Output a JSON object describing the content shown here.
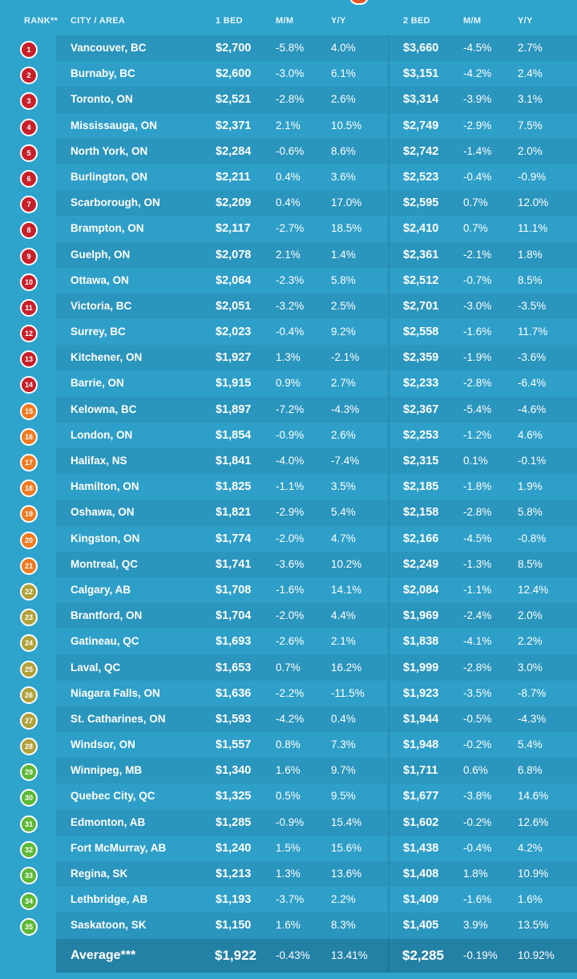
{
  "colors": {
    "background": "#2ea3cc",
    "rank_red": "#c8202a",
    "rank_orange": "#ee7b22",
    "rank_olive": "#b0a13a",
    "rank_green": "#5db836",
    "average_bar": "#2381a6"
  },
  "header": {
    "rank": "RANK**",
    "city": "CITY / AREA",
    "bed1": "1 BED",
    "mm1": "M/M",
    "yy1": "Y/Y",
    "bed2": "2 BED",
    "mm2": "M/M",
    "yy2": "Y/Y"
  },
  "rows": [
    {
      "rank": "1",
      "city": "Vancouver, BC",
      "b1": "$2,700",
      "m1": "-5.8%",
      "y1": "4.0%",
      "b2": "$3,660",
      "m2": "-4.5%",
      "y2": "2.7%",
      "tier": "red"
    },
    {
      "rank": "2",
      "city": "Burnaby, BC",
      "b1": "$2,600",
      "m1": "-3.0%",
      "y1": "6.1%",
      "b2": "$3,151",
      "m2": "-4.2%",
      "y2": "2.4%",
      "tier": "red"
    },
    {
      "rank": "3",
      "city": "Toronto, ON",
      "b1": "$2,521",
      "m1": "-2.8%",
      "y1": "2.6%",
      "b2": "$3,314",
      "m2": "-3.9%",
      "y2": "3.1%",
      "tier": "red"
    },
    {
      "rank": "4",
      "city": "Mississauga, ON",
      "b1": "$2,371",
      "m1": "2.1%",
      "y1": "10.5%",
      "b2": "$2,749",
      "m2": "-2.9%",
      "y2": "7.5%",
      "tier": "red"
    },
    {
      "rank": "5",
      "city": "North York, ON",
      "b1": "$2,284",
      "m1": "-0.6%",
      "y1": "8.6%",
      "b2": "$2,742",
      "m2": "-1.4%",
      "y2": "2.0%",
      "tier": "red"
    },
    {
      "rank": "6",
      "city": "Burlington, ON",
      "b1": "$2,211",
      "m1": "0.4%",
      "y1": "3.6%",
      "b2": "$2,523",
      "m2": "-0.4%",
      "y2": "-0.9%",
      "tier": "red"
    },
    {
      "rank": "7",
      "city": "Scarborough, ON",
      "b1": "$2,209",
      "m1": "0.4%",
      "y1": "17.0%",
      "b2": "$2,595",
      "m2": "0.7%",
      "y2": "12.0%",
      "tier": "red"
    },
    {
      "rank": "8",
      "city": "Brampton, ON",
      "b1": "$2,117",
      "m1": "-2.7%",
      "y1": "18.5%",
      "b2": "$2,410",
      "m2": "0.7%",
      "y2": "11.1%",
      "tier": "red"
    },
    {
      "rank": "9",
      "city": "Guelph, ON",
      "b1": "$2,078",
      "m1": "2.1%",
      "y1": "1.4%",
      "b2": "$2,361",
      "m2": "-2.1%",
      "y2": "1.8%",
      "tier": "red"
    },
    {
      "rank": "10",
      "city": "Ottawa, ON",
      "b1": "$2,064",
      "m1": "-2.3%",
      "y1": "5.8%",
      "b2": "$2,512",
      "m2": "-0.7%",
      "y2": "8.5%",
      "tier": "red"
    },
    {
      "rank": "11",
      "city": "Victoria, BC",
      "b1": "$2,051",
      "m1": "-3.2%",
      "y1": "2.5%",
      "b2": "$2,701",
      "m2": "-3.0%",
      "y2": "-3.5%",
      "tier": "red"
    },
    {
      "rank": "12",
      "city": "Surrey, BC",
      "b1": "$2,023",
      "m1": "-0.4%",
      "y1": "9.2%",
      "b2": "$2,558",
      "m2": "-1.6%",
      "y2": "11.7%",
      "tier": "red"
    },
    {
      "rank": "13",
      "city": "Kitchener, ON",
      "b1": "$1,927",
      "m1": "1.3%",
      "y1": "-2.1%",
      "b2": "$2,359",
      "m2": "-1.9%",
      "y2": "-3.6%",
      "tier": "red"
    },
    {
      "rank": "14",
      "city": "Barrie, ON",
      "b1": "$1,915",
      "m1": "0.9%",
      "y1": "2.7%",
      "b2": "$2,233",
      "m2": "-2.8%",
      "y2": "-6.4%",
      "tier": "red"
    },
    {
      "rank": "15",
      "city": "Kelowna, BC",
      "b1": "$1,897",
      "m1": "-7.2%",
      "y1": "-4.3%",
      "b2": "$2,367",
      "m2": "-5.4%",
      "y2": "-4.6%",
      "tier": "orange"
    },
    {
      "rank": "16",
      "city": "London, ON",
      "b1": "$1,854",
      "m1": "-0.9%",
      "y1": "2.6%",
      "b2": "$2,253",
      "m2": "-1.2%",
      "y2": "4.6%",
      "tier": "orange"
    },
    {
      "rank": "17",
      "city": "Halifax, NS",
      "b1": "$1,841",
      "m1": "-4.0%",
      "y1": "-7.4%",
      "b2": "$2,315",
      "m2": "0.1%",
      "y2": "-0.1%",
      "tier": "orange"
    },
    {
      "rank": "18",
      "city": "Hamilton, ON",
      "b1": "$1,825",
      "m1": "-1.1%",
      "y1": "3.5%",
      "b2": "$2,185",
      "m2": "-1.8%",
      "y2": "1.9%",
      "tier": "orange"
    },
    {
      "rank": "19",
      "city": "Oshawa, ON",
      "b1": "$1,821",
      "m1": "-2.9%",
      "y1": "5.4%",
      "b2": "$2,158",
      "m2": "-2.8%",
      "y2": "5.8%",
      "tier": "orange"
    },
    {
      "rank": "20",
      "city": "Kingston, ON",
      "b1": "$1,774",
      "m1": "-2.0%",
      "y1": "4.7%",
      "b2": "$2,166",
      "m2": "-4.5%",
      "y2": "-0.8%",
      "tier": "orange"
    },
    {
      "rank": "21",
      "city": "Montreal, QC",
      "b1": "$1,741",
      "m1": "-3.6%",
      "y1": "10.2%",
      "b2": "$2,249",
      "m2": "-1.3%",
      "y2": "8.5%",
      "tier": "orange"
    },
    {
      "rank": "22",
      "city": "Calgary, AB",
      "b1": "$1,708",
      "m1": "-1.6%",
      "y1": "14.1%",
      "b2": "$2,084",
      "m2": "-1.1%",
      "y2": "12.4%",
      "tier": "olive"
    },
    {
      "rank": "23",
      "city": "Brantford, ON",
      "b1": "$1,704",
      "m1": "-2.0%",
      "y1": "4.4%",
      "b2": "$1,969",
      "m2": "-2.4%",
      "y2": "2.0%",
      "tier": "olive"
    },
    {
      "rank": "24",
      "city": "Gatineau, QC",
      "b1": "$1,693",
      "m1": "-2.6%",
      "y1": "2.1%",
      "b2": "$1,838",
      "m2": "-4.1%",
      "y2": "2.2%",
      "tier": "olive"
    },
    {
      "rank": "25",
      "city": "Laval, QC",
      "b1": "$1,653",
      "m1": "0.7%",
      "y1": "16.2%",
      "b2": "$1,999",
      "m2": "-2.8%",
      "y2": "3.0%",
      "tier": "olive"
    },
    {
      "rank": "26",
      "city": "Niagara Falls, ON",
      "b1": "$1,636",
      "m1": "-2.2%",
      "y1": "-11.5%",
      "b2": "$1,923",
      "m2": "-3.5%",
      "y2": "-8.7%",
      "tier": "olive"
    },
    {
      "rank": "27",
      "city": "St. Catharines, ON",
      "b1": "$1,593",
      "m1": "-4.2%",
      "y1": "0.4%",
      "b2": "$1,944",
      "m2": "-0.5%",
      "y2": "-4.3%",
      "tier": "olive"
    },
    {
      "rank": "28",
      "city": "Windsor, ON",
      "b1": "$1,557",
      "m1": "0.8%",
      "y1": "7.3%",
      "b2": "$1,948",
      "m2": "-0.2%",
      "y2": "5.4%",
      "tier": "olive"
    },
    {
      "rank": "29",
      "city": "Winnipeg, MB",
      "b1": "$1,340",
      "m1": "1.6%",
      "y1": "9.7%",
      "b2": "$1,711",
      "m2": "0.6%",
      "y2": "6.8%",
      "tier": "green"
    },
    {
      "rank": "30",
      "city": "Quebec City, QC",
      "b1": "$1,325",
      "m1": "0.5%",
      "y1": "9.5%",
      "b2": "$1,677",
      "m2": "-3.8%",
      "y2": "14.6%",
      "tier": "green"
    },
    {
      "rank": "31",
      "city": "Edmonton, AB",
      "b1": "$1,285",
      "m1": "-0.9%",
      "y1": "15.4%",
      "b2": "$1,602",
      "m2": "-0.2%",
      "y2": "12.6%",
      "tier": "green"
    },
    {
      "rank": "32",
      "city": "Fort McMurray, AB",
      "b1": "$1,240",
      "m1": "1.5%",
      "y1": "15.6%",
      "b2": "$1,438",
      "m2": "-0.4%",
      "y2": "4.2%",
      "tier": "green"
    },
    {
      "rank": "33",
      "city": "Regina, SK",
      "b1": "$1,213",
      "m1": "1.3%",
      "y1": "13.6%",
      "b2": "$1,408",
      "m2": "1.8%",
      "y2": "10.9%",
      "tier": "green"
    },
    {
      "rank": "34",
      "city": "Lethbridge, AB",
      "b1": "$1,193",
      "m1": "-3.7%",
      "y1": "2.2%",
      "b2": "$1,409",
      "m2": "-1.6%",
      "y2": "1.6%",
      "tier": "green"
    },
    {
      "rank": "35",
      "city": "Saskatoon, SK",
      "b1": "$1,150",
      "m1": "1.6%",
      "y1": "8.3%",
      "b2": "$1,405",
      "m2": "3.9%",
      "y2": "13.5%",
      "tier": "green"
    }
  ],
  "average": {
    "label": "Average***",
    "b1": "$1,922",
    "m1": "-0.43%",
    "y1": "13.41%",
    "b2": "$2,285",
    "m2": "-0.19%",
    "y2": "10.92%"
  }
}
